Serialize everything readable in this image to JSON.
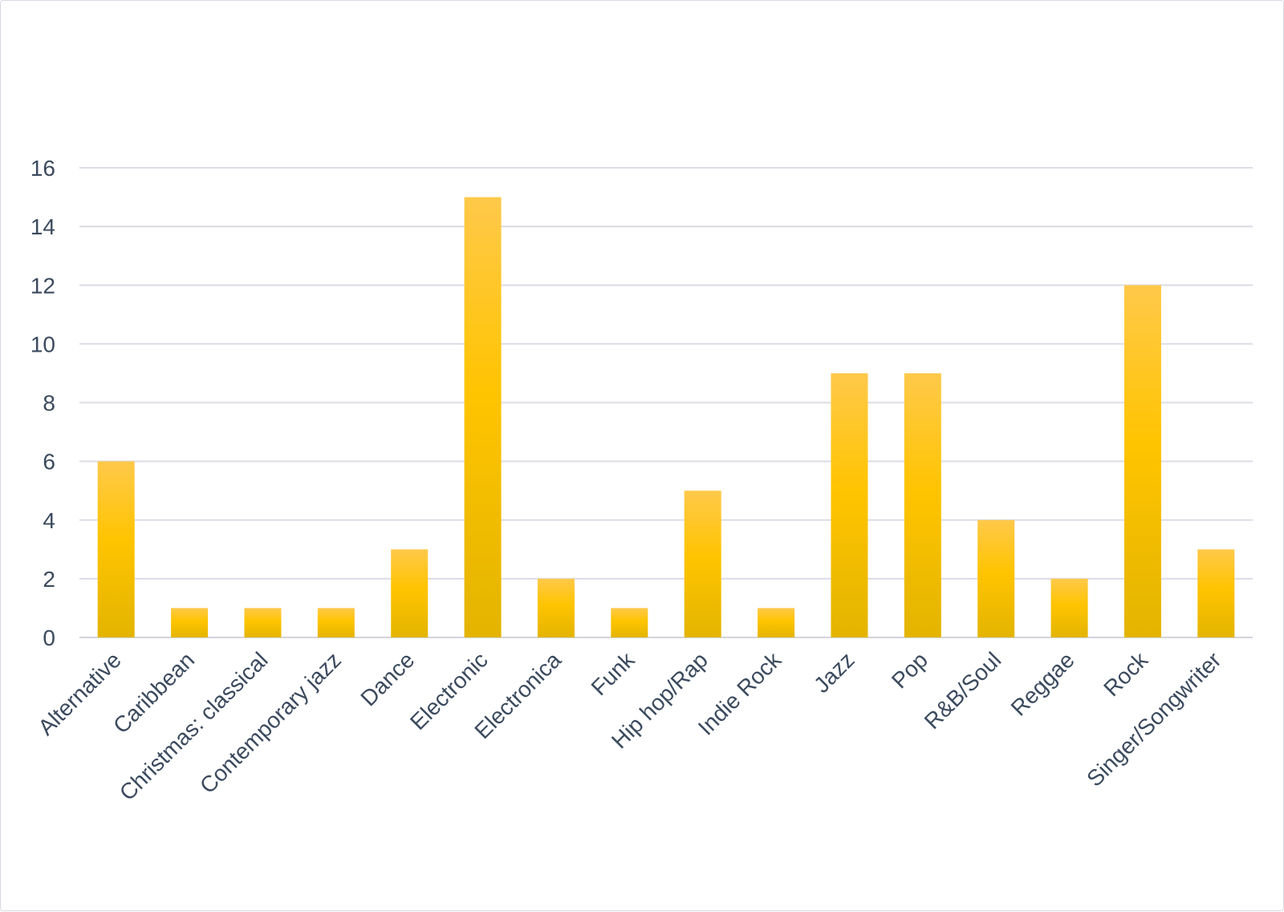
{
  "chart_data": {
    "type": "bar",
    "title": "",
    "xlabel": "",
    "ylabel": "",
    "categories": [
      "Alternative",
      "Caribbean",
      "Christmas: classical",
      "Contemporary jazz",
      "Dance",
      "Electronic",
      "Electronica",
      "Funk",
      "Hip hop/Rap",
      "Indie Rock",
      "Jazz",
      "Pop",
      "R&B/Soul",
      "Reggae",
      "Rock",
      "Singer/Songwriter"
    ],
    "values": [
      6,
      1,
      1,
      1,
      3,
      15,
      2,
      1,
      5,
      1,
      9,
      9,
      4,
      2,
      12,
      3
    ],
    "ylim": [
      0,
      16
    ],
    "yticks": [
      "0",
      "2",
      "4",
      "6",
      "8",
      "10",
      "12",
      "14",
      "16"
    ],
    "grid": true,
    "legend": "none",
    "colors": {
      "bar_top": "#ffc94a",
      "bar_mid": "#ffc400",
      "bar_bottom": "#e3b400"
    }
  }
}
